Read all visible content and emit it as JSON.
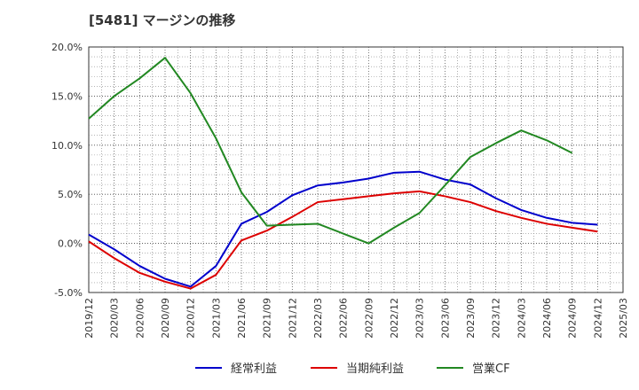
{
  "title": "[5481]  マージンの推移",
  "chart_data": {
    "type": "line",
    "title": "[5481]  マージンの推移",
    "xlabel": "",
    "ylabel": "",
    "ylim": [
      -5,
      20
    ],
    "yticks": [
      "-5.0%",
      "0.0%",
      "5.0%",
      "10.0%",
      "15.0%",
      "20.0%"
    ],
    "ytick_values": [
      -5,
      0,
      5,
      10,
      15,
      20
    ],
    "x": [
      "2019/12",
      "2020/03",
      "2020/06",
      "2020/09",
      "2020/12",
      "2021/03",
      "2021/06",
      "2021/09",
      "2021/12",
      "2022/03",
      "2022/06",
      "2022/09",
      "2022/12",
      "2023/03",
      "2023/06",
      "2023/09",
      "2023/12",
      "2024/03",
      "2024/06",
      "2024/09",
      "2024/12",
      "2025/03"
    ],
    "grid": true,
    "legend_position": "bottom",
    "series": [
      {
        "name": "経常利益",
        "color": "#0000cc",
        "values": [
          0.9,
          -0.6,
          -2.3,
          -3.6,
          -4.4,
          -2.3,
          2.0,
          3.2,
          4.9,
          5.9,
          6.2,
          6.6,
          7.2,
          7.3,
          6.5,
          6.0,
          4.6,
          3.4,
          2.6,
          2.1,
          1.9,
          null
        ]
      },
      {
        "name": "当期純利益",
        "color": "#dd0000",
        "values": [
          0.2,
          -1.5,
          -3.0,
          -3.9,
          -4.6,
          -3.2,
          0.3,
          1.3,
          2.7,
          4.2,
          4.5,
          4.8,
          5.1,
          5.3,
          4.8,
          4.2,
          3.3,
          2.6,
          2.0,
          1.6,
          1.2,
          null
        ]
      },
      {
        "name": "営業CF",
        "color": "#228822",
        "values": [
          12.7,
          15.0,
          16.8,
          18.9,
          15.3,
          10.7,
          5.2,
          1.8,
          1.9,
          2.0,
          1.0,
          0.0,
          1.6,
          3.1,
          5.9,
          8.8,
          10.2,
          11.5,
          10.5,
          9.2,
          null,
          null
        ]
      }
    ]
  }
}
